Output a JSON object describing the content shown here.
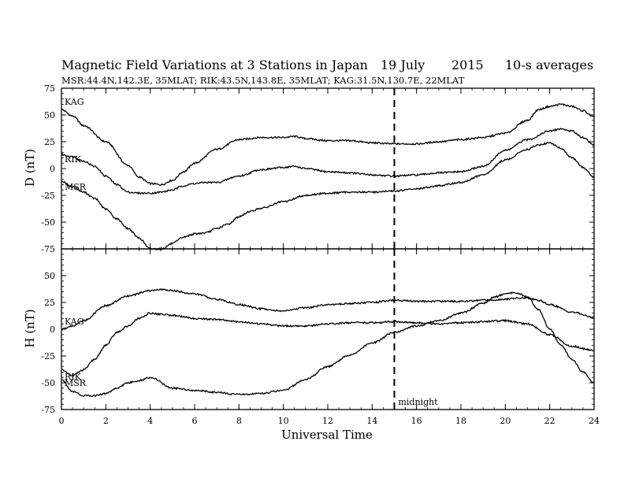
{
  "header": {
    "title": "Magnetic Field Variations at 3 Stations in Japan",
    "date_day": "19 July",
    "date_year": "2015",
    "averaging": "10-s averages",
    "stations": "MSR:44.4N,142.3E, 35MLAT;  RIK:43.5N,143.8E, 35MLAT;  KAG:31.5N,130.7E, 22MLAT"
  },
  "chart_data": [
    {
      "type": "line",
      "panel": "top",
      "ylabel": "D (nT)",
      "ylim": [
        -75,
        75
      ],
      "yticks": [
        "75",
        "50",
        "25",
        "0",
        "-25",
        "-50",
        "-75"
      ],
      "xlim": [
        0,
        24
      ],
      "series": [
        {
          "name": "KAG",
          "x": [
            0,
            0.5,
            1,
            2,
            3,
            3.5,
            4,
            4.5,
            5,
            5.5,
            6,
            7,
            8,
            9,
            10,
            10.5,
            11,
            12,
            13,
            14,
            15,
            16,
            17,
            18,
            19,
            20,
            21,
            21.5,
            22,
            22.5,
            23,
            23.5,
            24
          ],
          "values": [
            55,
            49,
            40,
            25,
            3,
            -8,
            -14,
            -15,
            -11,
            -3,
            5,
            18,
            27,
            29,
            29,
            30,
            28,
            26,
            26,
            24,
            23,
            23,
            25,
            27,
            29,
            33,
            45,
            55,
            58,
            60,
            58,
            54,
            48
          ]
        },
        {
          "name": "RIK",
          "x": [
            0,
            0.5,
            1,
            1.5,
            2,
            2.5,
            3,
            3.5,
            4,
            4.5,
            5,
            5.5,
            6,
            6.5,
            7,
            8,
            9,
            10,
            10.5,
            11,
            12,
            13,
            14,
            15,
            16,
            17,
            18,
            19,
            20,
            21,
            22,
            22.5,
            23,
            23.5,
            24
          ],
          "values": [
            13,
            11,
            7,
            2,
            -7,
            -15,
            -22,
            -23,
            -23,
            -22,
            -20,
            -16,
            -14,
            -13,
            -13,
            -7,
            -1,
            1,
            2,
            0,
            -3,
            -4,
            -6,
            -7,
            -6,
            -4,
            -3,
            2,
            17,
            27,
            35,
            37,
            35,
            29,
            22
          ]
        },
        {
          "name": "MSR",
          "x": [
            0,
            0.5,
            1,
            1.5,
            2,
            2.5,
            3,
            3.5,
            4,
            4.5,
            5,
            5.5,
            6,
            6.5,
            7,
            7.5,
            8,
            8.5,
            9,
            10,
            11,
            12,
            13,
            14,
            15,
            16,
            17,
            18,
            19,
            20,
            21,
            21.5,
            22,
            22.5,
            23,
            23.5,
            24
          ],
          "values": [
            -12,
            -17,
            -22,
            -28,
            -38,
            -47,
            -56,
            -65,
            -75,
            -75,
            -70,
            -64,
            -61,
            -60,
            -56,
            -52,
            -45,
            -40,
            -37,
            -31,
            -25,
            -23,
            -22,
            -22,
            -21,
            -19,
            -16,
            -13,
            -6,
            8,
            18,
            22,
            24,
            19,
            10,
            1,
            -8
          ]
        }
      ]
    },
    {
      "type": "line",
      "panel": "bottom",
      "ylabel": "H (nT)",
      "xlabel": "Universal Time",
      "ylim": [
        -75,
        75
      ],
      "yticks": [
        "50",
        "25",
        "0",
        "-25",
        "-50",
        "-75"
      ],
      "xlim": [
        0,
        24
      ],
      "xticks": [
        "0",
        "2",
        "4",
        "6",
        "8",
        "10",
        "12",
        "14",
        "16",
        "18",
        "20",
        "22",
        "24"
      ],
      "annotation": {
        "text": "midnight",
        "x": 15
      },
      "series": [
        {
          "name": "KAG",
          "x": [
            0,
            0.5,
            1,
            2,
            3,
            4,
            4.5,
            5,
            6,
            7,
            8,
            9,
            10,
            11,
            12,
            13,
            14,
            15,
            16,
            17,
            18,
            19,
            20,
            20.5,
            21,
            21.5,
            22,
            23,
            24
          ],
          "values": [
            0,
            3,
            8,
            22,
            31,
            36,
            37,
            36,
            33,
            28,
            23,
            19,
            17,
            20,
            23,
            24,
            25,
            27,
            26,
            26,
            26,
            27,
            28,
            29,
            29,
            27,
            23,
            16,
            11
          ]
        },
        {
          "name": "RIK",
          "x": [
            0,
            0.5,
            1,
            1.5,
            2,
            2.5,
            3,
            3.5,
            4,
            4.5,
            5,
            6,
            7,
            8,
            9,
            10,
            11,
            12,
            13,
            14,
            15,
            16,
            17,
            18,
            19,
            20,
            21,
            22,
            23,
            24
          ],
          "values": [
            -38,
            -43,
            -38,
            -28,
            -15,
            -3,
            3,
            10,
            15,
            14,
            13,
            10,
            9,
            7,
            5,
            3,
            3,
            5,
            6,
            6,
            7,
            6,
            5,
            6,
            7,
            8,
            5,
            -5,
            -16,
            -20
          ]
        },
        {
          "name": "MSR",
          "x": [
            0,
            0.5,
            1,
            1.5,
            2,
            2.5,
            3,
            3.5,
            4,
            5,
            6,
            7,
            8,
            9,
            10,
            11,
            12,
            13,
            14,
            15,
            16,
            17,
            18,
            19,
            19.5,
            20,
            20.5,
            21,
            21.5,
            22,
            22.5,
            23,
            23.5,
            24
          ],
          "values": [
            -47,
            -58,
            -62,
            -62,
            -60,
            -55,
            -50,
            -48,
            -45,
            -55,
            -57,
            -59,
            -61,
            -60,
            -57,
            -47,
            -35,
            -24,
            -13,
            -3,
            3,
            8,
            15,
            24,
            30,
            33,
            34,
            30,
            18,
            0,
            -15,
            -28,
            -40,
            -50
          ]
        }
      ]
    }
  ]
}
